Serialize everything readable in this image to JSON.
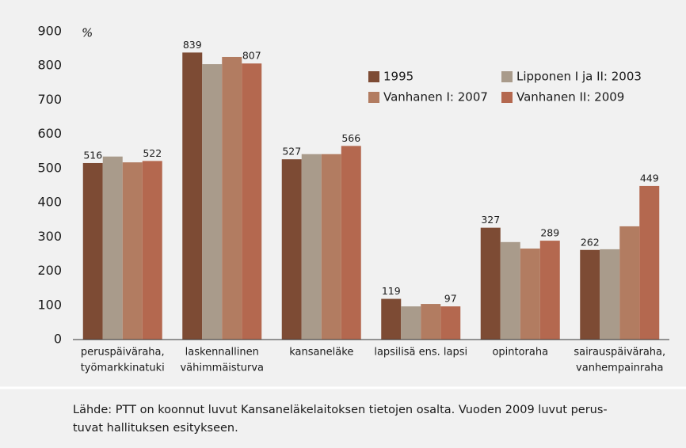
{
  "chart_data": {
    "type": "bar",
    "unit_label": "%",
    "categories": [
      [
        "peruspäiväraha,",
        "työmarkkinatuki"
      ],
      [
        "laskennallinen",
        "vähimmäisturva"
      ],
      [
        "kansaneläke"
      ],
      [
        "lapsilisä ens. lapsi"
      ],
      [
        "opintoraha"
      ],
      [
        "sairauspäiväraha,",
        "vanhempainraha"
      ]
    ],
    "series": [
      {
        "name": "1995",
        "color": "#7d4b34",
        "values": [
          516,
          839,
          527,
          119,
          327,
          262
        ],
        "show_labels": true
      },
      {
        "name": "Lipponen I ja II: 2003",
        "color": "#a99b8b",
        "values": [
          535,
          805,
          542,
          97,
          285,
          264
        ],
        "show_labels": false
      },
      {
        "name": "Vanhanen I: 2007",
        "color": "#b27c61",
        "values": [
          518,
          826,
          542,
          104,
          266,
          331
        ],
        "show_labels": false
      },
      {
        "name": "Vanhanen II: 2009",
        "color": "#b4684f",
        "values": [
          522,
          807,
          566,
          97,
          289,
          449
        ],
        "show_labels": true
      }
    ],
    "ylim": [
      0,
      900
    ],
    "yticks": [
      0,
      100,
      200,
      300,
      400,
      500,
      600,
      700,
      800,
      900
    ],
    "grid": false,
    "legend": "top-right",
    "source": [
      "Lähde: PTT on koonnut luvut Kansaneläkelaitoksen tietojen osalta. Vuoden 2009 luvut perus-",
      "tuvat hallituksen esitykseen."
    ]
  }
}
